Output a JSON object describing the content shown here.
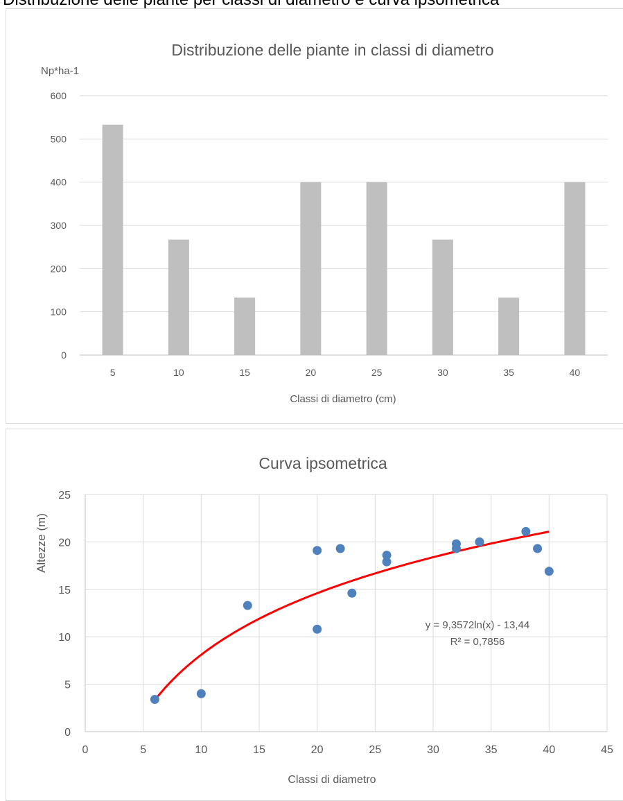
{
  "header": {
    "cut_text": "Distribuzione delle piante per classi di diametro e curva ipsometrica"
  },
  "chart_data": [
    {
      "type": "bar",
      "title": "Distribuzione delle piante in classi di diametro",
      "xlabel": "Classi di diametro (cm)",
      "ylabel": "Np*ha-1",
      "categories": [
        "5",
        "10",
        "15",
        "20",
        "25",
        "30",
        "35",
        "40"
      ],
      "values": [
        533,
        267,
        133,
        400,
        400,
        267,
        133,
        400
      ],
      "ylim": [
        0,
        600
      ],
      "yticks": [
        "0",
        "100",
        "200",
        "300",
        "400",
        "500",
        "600"
      ],
      "bar_color": "#bfbfbf",
      "grid": "horizontal",
      "legend": "none"
    },
    {
      "type": "scatter",
      "title": "Curva ipsometrica",
      "xlabel": "Classi di diametro",
      "ylabel": "Altezze (m)",
      "xlim": [
        0,
        45
      ],
      "ylim": [
        0,
        25
      ],
      "xticks": [
        "0",
        "5",
        "10",
        "15",
        "20",
        "25",
        "30",
        "35",
        "40",
        "45"
      ],
      "yticks": [
        "0",
        "5",
        "10",
        "15",
        "20",
        "25"
      ],
      "points": [
        {
          "x": 6,
          "y": 3.4
        },
        {
          "x": 10,
          "y": 4.0
        },
        {
          "x": 14,
          "y": 13.3
        },
        {
          "x": 20,
          "y": 19.1
        },
        {
          "x": 20,
          "y": 10.8
        },
        {
          "x": 22,
          "y": 19.3
        },
        {
          "x": 23,
          "y": 14.6
        },
        {
          "x": 26,
          "y": 18.6
        },
        {
          "x": 26,
          "y": 17.9
        },
        {
          "x": 32,
          "y": 19.8
        },
        {
          "x": 32,
          "y": 19.3
        },
        {
          "x": 34,
          "y": 20.0
        },
        {
          "x": 38,
          "y": 21.1
        },
        {
          "x": 39,
          "y": 19.3
        },
        {
          "x": 40,
          "y": 16.9
        }
      ],
      "trendline": {
        "type": "log",
        "a": 9.3572,
        "b": -13.44,
        "x_from": 6,
        "x_to": 40,
        "equation": "y = 9,3572ln(x) - 13,44",
        "r2": "R² = 0,7856",
        "color": "#ff0000"
      },
      "point_color": "#4f81bd",
      "grid": "both",
      "legend": "none"
    }
  ]
}
